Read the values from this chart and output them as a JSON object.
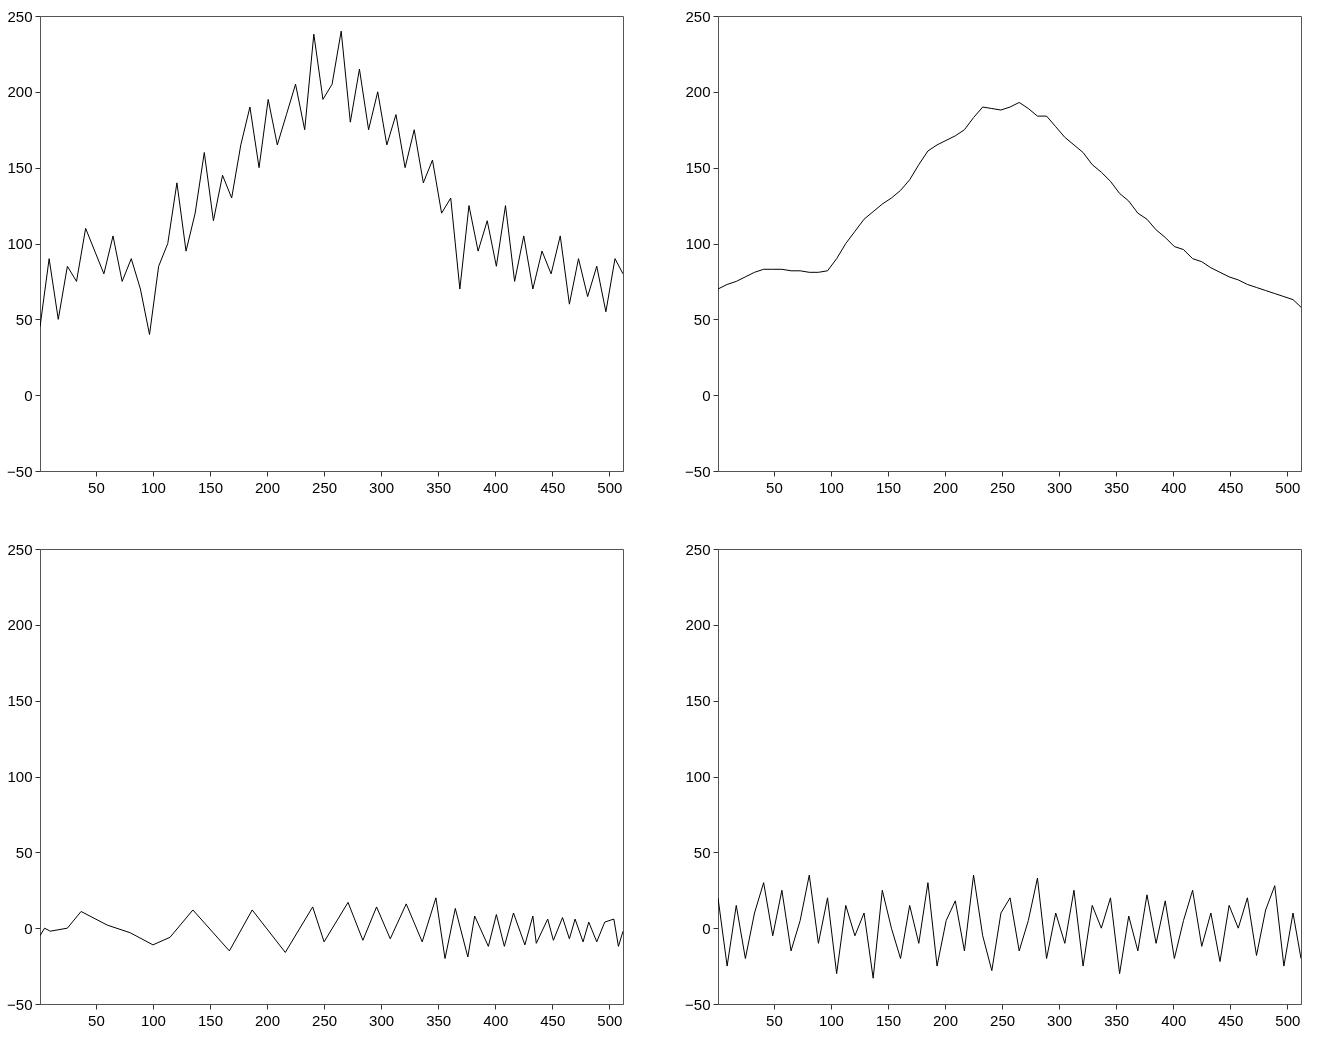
{
  "chart_data": [
    {
      "type": "line",
      "color": "#000000",
      "xlim": [
        1,
        512
      ],
      "ylim": [
        -50,
        250
      ],
      "xticks": [
        50,
        100,
        150,
        200,
        250,
        300,
        350,
        400,
        450,
        500
      ],
      "yticks": [
        -50,
        0,
        50,
        100,
        150,
        200,
        250
      ],
      "x": [
        1,
        9,
        17,
        25,
        33,
        41,
        49,
        57,
        65,
        73,
        81,
        89,
        97,
        105,
        113,
        121,
        129,
        137,
        145,
        153,
        161,
        169,
        177,
        185,
        193,
        201,
        209,
        217,
        225,
        233,
        241,
        249,
        257,
        265,
        273,
        281,
        289,
        297,
        305,
        313,
        321,
        329,
        337,
        345,
        353,
        361,
        369,
        377,
        385,
        393,
        401,
        409,
        417,
        425,
        433,
        441,
        449,
        457,
        465,
        473,
        481,
        489,
        497,
        505,
        512
      ],
      "values": [
        45,
        90,
        50,
        85,
        75,
        110,
        95,
        80,
        105,
        75,
        90,
        70,
        40,
        85,
        100,
        140,
        95,
        120,
        160,
        115,
        145,
        130,
        165,
        190,
        150,
        195,
        165,
        185,
        205,
        175,
        238,
        195,
        205,
        240,
        180,
        215,
        175,
        200,
        165,
        185,
        150,
        175,
        140,
        155,
        120,
        130,
        70,
        125,
        95,
        115,
        85,
        125,
        75,
        105,
        70,
        95,
        80,
        105,
        60,
        90,
        65,
        85,
        55,
        90,
        80
      ]
    },
    {
      "type": "line",
      "color": "#000000",
      "xlim": [
        1,
        512
      ],
      "ylim": [
        -50,
        250
      ],
      "xticks": [
        50,
        100,
        150,
        200,
        250,
        300,
        350,
        400,
        450,
        500
      ],
      "yticks": [
        -50,
        0,
        50,
        100,
        150,
        200,
        250
      ],
      "x": [
        1,
        9,
        17,
        25,
        33,
        41,
        49,
        57,
        65,
        73,
        81,
        89,
        97,
        105,
        113,
        121,
        129,
        137,
        145,
        153,
        161,
        169,
        177,
        185,
        193,
        201,
        209,
        217,
        225,
        233,
        241,
        249,
        257,
        265,
        273,
        281,
        289,
        297,
        305,
        313,
        321,
        329,
        337,
        345,
        353,
        361,
        369,
        377,
        385,
        393,
        401,
        409,
        417,
        425,
        433,
        441,
        449,
        457,
        465,
        473,
        481,
        489,
        497,
        505,
        512
      ],
      "values": [
        70,
        73,
        75,
        78,
        81,
        83,
        83,
        83,
        82,
        82,
        81,
        81,
        82,
        90,
        100,
        108,
        116,
        121,
        126,
        130,
        135,
        142,
        152,
        161,
        165,
        168,
        171,
        175,
        183,
        190,
        189,
        188,
        190,
        193,
        189,
        184,
        184,
        177,
        170,
        165,
        160,
        152,
        147,
        141,
        133,
        128,
        120,
        116,
        109,
        104,
        98,
        96,
        90,
        88,
        84,
        81,
        78,
        76,
        73,
        71,
        69,
        67,
        65,
        63,
        58
      ]
    },
    {
      "type": "line",
      "color": "#000000",
      "xlim": [
        1,
        512
      ],
      "ylim": [
        -50,
        250
      ],
      "xticks": [
        50,
        100,
        150,
        200,
        250,
        300,
        350,
        400,
        450,
        500
      ],
      "yticks": [
        -50,
        0,
        50,
        100,
        150,
        200,
        250
      ],
      "x": [
        1,
        5,
        10,
        25,
        37,
        60,
        80,
        100,
        115,
        135,
        167,
        187,
        216,
        240,
        250,
        271,
        284,
        296,
        308,
        322,
        336,
        348,
        356,
        365,
        376,
        382,
        394,
        401,
        408,
        416,
        426,
        433,
        436,
        446,
        451,
        459,
        465,
        470,
        477,
        482,
        489,
        496,
        504,
        508,
        512
      ],
      "values": [
        -5,
        0,
        -2,
        0,
        11,
        2,
        -3,
        -11,
        -6,
        12,
        -15,
        12,
        -16,
        14,
        -9,
        17,
        -8,
        14,
        -7,
        16,
        -9,
        20,
        -20,
        13,
        -19,
        8,
        -12,
        9,
        -12,
        10,
        -11,
        8,
        -10,
        6,
        -8,
        7,
        -7,
        6,
        -9,
        4,
        -9,
        4,
        6,
        -12,
        -2
      ]
    },
    {
      "type": "line",
      "color": "#000000",
      "xlim": [
        1,
        512
      ],
      "ylim": [
        -50,
        250
      ],
      "xticks": [
        50,
        100,
        150,
        200,
        250,
        300,
        350,
        400,
        450,
        500
      ],
      "yticks": [
        -50,
        0,
        50,
        100,
        150,
        200,
        250
      ],
      "x": [
        1,
        9,
        17,
        25,
        33,
        41,
        49,
        57,
        65,
        73,
        81,
        89,
        97,
        105,
        113,
        121,
        129,
        137,
        145,
        153,
        161,
        169,
        177,
        185,
        193,
        201,
        209,
        217,
        225,
        233,
        241,
        249,
        257,
        265,
        273,
        281,
        289,
        297,
        305,
        313,
        321,
        329,
        337,
        345,
        353,
        361,
        369,
        377,
        385,
        393,
        401,
        409,
        417,
        425,
        433,
        441,
        449,
        457,
        465,
        473,
        481,
        489,
        497,
        505,
        512
      ],
      "values": [
        20,
        -25,
        15,
        -20,
        10,
        30,
        -5,
        25,
        -15,
        5,
        35,
        -10,
        20,
        -30,
        15,
        -5,
        10,
        -33,
        25,
        0,
        -20,
        15,
        -10,
        30,
        -25,
        5,
        18,
        -15,
        35,
        -5,
        -28,
        10,
        20,
        -15,
        5,
        33,
        -20,
        10,
        -10,
        25,
        -25,
        15,
        0,
        20,
        -30,
        8,
        -15,
        22,
        -10,
        18,
        -20,
        5,
        25,
        -12,
        10,
        -22,
        15,
        0,
        20,
        -18,
        12,
        28,
        -25,
        10,
        -20
      ]
    }
  ]
}
